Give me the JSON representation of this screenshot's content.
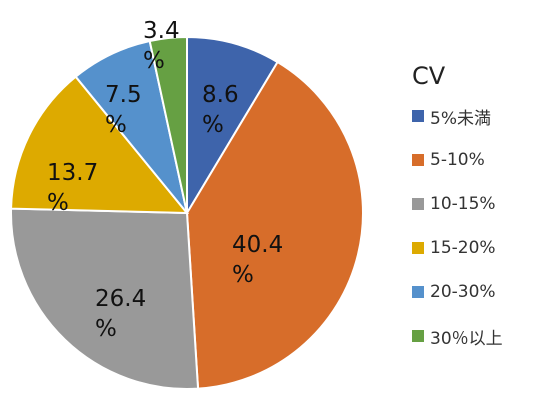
{
  "chart_data": {
    "type": "pie",
    "legend_title": "CV",
    "legend_position": "right",
    "categories": [
      "5%未満",
      "5-10%",
      "10-15%",
      "15-20%",
      "20-30%",
      "30％以上"
    ],
    "values": [
      8.6,
      40.4,
      26.4,
      13.7,
      7.5,
      3.4
    ],
    "labels": [
      [
        "8.6",
        "%"
      ],
      [
        "40.4",
        "%"
      ],
      [
        "26.4",
        "%"
      ],
      [
        "13.7",
        "%"
      ],
      [
        "7.5",
        "%"
      ],
      [
        "3.4",
        "%"
      ]
    ],
    "colors": [
      "#3E64AB",
      "#D76D2A",
      "#999999",
      "#DDAA00",
      "#5591CC",
      "#66A043"
    ],
    "start_angle_deg": 0,
    "direction": "clockwise"
  }
}
